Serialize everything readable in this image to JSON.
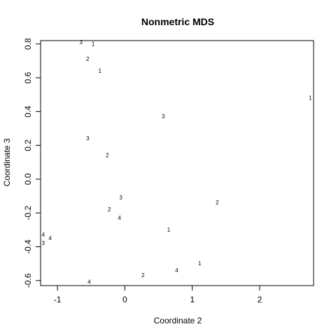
{
  "chart_data": {
    "type": "scatter",
    "title": "Nonmetric MDS",
    "xlabel": "Coordinate 2",
    "ylabel": "Coordinate 3",
    "xlim": [
      -1.25,
      2.8
    ],
    "ylim": [
      -0.63,
      0.82
    ],
    "xticks": [
      -1,
      0,
      1,
      2
    ],
    "xtick_labels": [
      "-1",
      "0",
      "1",
      "2"
    ],
    "yticks": [
      -0.6,
      -0.4,
      -0.2,
      0.0,
      0.2,
      0.4,
      0.6,
      0.8
    ],
    "ytick_labels": [
      "-0.6",
      "-0.4",
      "-0.2",
      "0.0",
      "0.2",
      "0.4",
      "0.6",
      "0.8"
    ],
    "grid": false,
    "point_labels_drawn_as_text": true,
    "points": [
      {
        "x": -0.65,
        "y": 0.81,
        "label": "3"
      },
      {
        "x": -0.47,
        "y": 0.8,
        "label": "1"
      },
      {
        "x": -0.55,
        "y": 0.71,
        "label": "2"
      },
      {
        "x": -0.37,
        "y": 0.64,
        "label": "1"
      },
      {
        "x": 2.75,
        "y": 0.48,
        "label": "1"
      },
      {
        "x": 0.57,
        "y": 0.37,
        "label": "3"
      },
      {
        "x": -0.55,
        "y": 0.24,
        "label": "3"
      },
      {
        "x": -0.26,
        "y": 0.14,
        "label": "2"
      },
      {
        "x": -0.06,
        "y": -0.11,
        "label": "3"
      },
      {
        "x": 1.37,
        "y": -0.14,
        "label": "2"
      },
      {
        "x": -0.23,
        "y": -0.18,
        "label": "2"
      },
      {
        "x": -0.08,
        "y": -0.23,
        "label": "4"
      },
      {
        "x": 0.65,
        "y": -0.3,
        "label": "1"
      },
      {
        "x": -1.21,
        "y": -0.33,
        "label": "4"
      },
      {
        "x": -1.11,
        "y": -0.35,
        "label": "4"
      },
      {
        "x": -1.21,
        "y": -0.38,
        "label": "3"
      },
      {
        "x": 1.11,
        "y": -0.5,
        "label": "1"
      },
      {
        "x": 0.77,
        "y": -0.54,
        "label": "4"
      },
      {
        "x": 0.27,
        "y": -0.57,
        "label": "2"
      },
      {
        "x": -0.53,
        "y": -0.61,
        "label": "4"
      }
    ]
  }
}
